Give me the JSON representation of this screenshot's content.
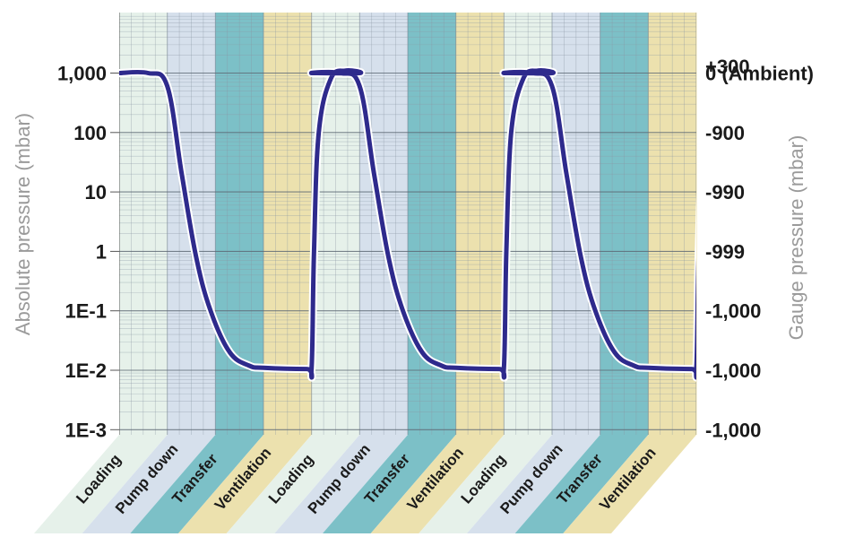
{
  "chart_data": {
    "type": "line",
    "left_axis": {
      "label": "Absolute pressure (mbar)",
      "scale": "log",
      "range": [
        0.001,
        10000
      ],
      "ticks": [
        {
          "value": 1000,
          "label": "1,000"
        },
        {
          "value": 100,
          "label": "100"
        },
        {
          "value": 10,
          "label": "10"
        },
        {
          "value": 1,
          "label": "1"
        },
        {
          "value": 0.1,
          "label": "1E-1"
        },
        {
          "value": 0.01,
          "label": "1E-2"
        },
        {
          "value": 0.001,
          "label": "1E-3"
        }
      ]
    },
    "right_axis": {
      "label": "Gauge pressure (mbar)",
      "ticks": [
        {
          "value": 1300,
          "label": "+300"
        },
        {
          "value": 1000,
          "label": "0 (Ambient)"
        },
        {
          "value": 100,
          "label": "-900"
        },
        {
          "value": 10,
          "label": "-990"
        },
        {
          "value": 1,
          "label": "-999"
        },
        {
          "value": 0.1,
          "label": "-1,000"
        },
        {
          "value": 0.01,
          "label": "-1,000"
        },
        {
          "value": 0.001,
          "label": "-1,000"
        }
      ]
    },
    "phases": [
      {
        "label": "Loading",
        "color": "#e6f1ea"
      },
      {
        "label": "Pump down",
        "color": "#d6e0ec"
      },
      {
        "label": "Transfer",
        "color": "#7cc0c7"
      },
      {
        "label": "Ventilation",
        "color": "#ece1ae"
      },
      {
        "label": "Loading",
        "color": "#e6f1ea"
      },
      {
        "label": "Pump down",
        "color": "#d6e0ec"
      },
      {
        "label": "Transfer",
        "color": "#7cc0c7"
      },
      {
        "label": "Ventilation",
        "color": "#ece1ae"
      },
      {
        "label": "Loading",
        "color": "#e6f1ea"
      },
      {
        "label": "Pump down",
        "color": "#d6e0ec"
      },
      {
        "label": "Transfer",
        "color": "#7cc0c7"
      },
      {
        "label": "Ventilation",
        "color": "#ece1ae"
      }
    ],
    "series": [
      {
        "color": "#2e2a8c",
        "points_per_cycle": [
          {
            "phase_pos": 0.0,
            "pressure": 1000
          },
          {
            "phase_pos": 0.6,
            "pressure": 1000
          },
          {
            "phase_pos": 1.0,
            "pressure": 600
          },
          {
            "phase_pos": 1.3,
            "pressure": 20
          },
          {
            "phase_pos": 1.6,
            "pressure": 0.8
          },
          {
            "phase_pos": 1.9,
            "pressure": 0.1
          },
          {
            "phase_pos": 2.3,
            "pressure": 0.02
          },
          {
            "phase_pos": 2.7,
            "pressure": 0.012
          },
          {
            "phase_pos": 3.0,
            "pressure": 0.011
          },
          {
            "phase_pos": 3.9,
            "pressure": 0.0105
          },
          {
            "phase_pos": 4.0,
            "pressure": 0.011
          },
          {
            "phase_pos": 4.05,
            "pressure": 1
          },
          {
            "phase_pos": 4.15,
            "pressure": 100
          },
          {
            "phase_pos": 4.4,
            "pressure": 800
          },
          {
            "phase_pos": 4.7,
            "pressure": 1100
          },
          {
            "phase_pos": 5.0,
            "pressure": 1000
          }
        ]
      }
    ],
    "grid": true
  }
}
